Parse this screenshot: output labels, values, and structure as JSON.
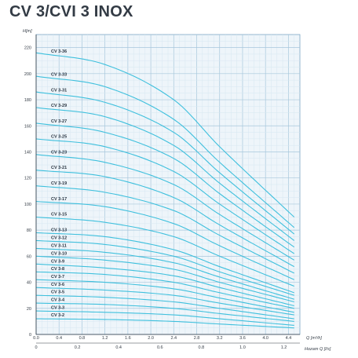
{
  "page": {
    "title": "CV 3/CVI 3 INOX"
  },
  "chart_data": {
    "type": "line",
    "title": "CV 3/CVI 3 INOX",
    "y_unit_label": "H[m]",
    "x_unit_label": "Q [m³/h]",
    "x2_unit_label": "Hozam Q [l/s]",
    "x_ticks": [
      "0.0",
      "0.4",
      "0.8",
      "1.2",
      "1.6",
      "2.0",
      "2.4",
      "2.8",
      "3.2",
      "3.6",
      "4.0",
      "4.4"
    ],
    "x2_ticks": [
      "0",
      "0.2",
      "0.4",
      "0.6",
      "0.8",
      "1.0",
      "1.2"
    ],
    "y_ticks": [
      "0",
      "20",
      "40",
      "60",
      "80",
      "100",
      "120",
      "140",
      "160",
      "180",
      "200",
      "220"
    ],
    "xlim": [
      0,
      4.6
    ],
    "ylim": [
      0,
      230
    ],
    "grid": true,
    "series": [
      {
        "name": "CV 3-2",
        "x": [
          0,
          1.2,
          2.4,
          3.2,
          4.5
        ],
        "y": [
          12,
          11.5,
          10,
          8,
          5
        ]
      },
      {
        "name": "CV 3-3",
        "x": [
          0,
          1.2,
          2.4,
          3.2,
          4.5
        ],
        "y": [
          18,
          17,
          15,
          12,
          7
        ]
      },
      {
        "name": "CV 3-4",
        "x": [
          0,
          1.2,
          2.4,
          3.2,
          4.5
        ],
        "y": [
          24,
          23,
          20,
          16,
          10
        ]
      },
      {
        "name": "CV 3-5",
        "x": [
          0,
          1.2,
          2.4,
          3.2,
          4.5
        ],
        "y": [
          30,
          28.5,
          25,
          20,
          12
        ]
      },
      {
        "name": "CV 3-6",
        "x": [
          0,
          1.2,
          2.4,
          3.2,
          4.5
        ],
        "y": [
          36,
          34,
          30,
          24,
          15
        ]
      },
      {
        "name": "CV 3-7",
        "x": [
          0,
          1.2,
          2.4,
          3.2,
          4.5
        ],
        "y": [
          42,
          40,
          35,
          28,
          17
        ]
      },
      {
        "name": "CV 3-8",
        "x": [
          0,
          1.2,
          2.4,
          3.2,
          4.5
        ],
        "y": [
          48,
          46,
          40,
          32,
          20
        ]
      },
      {
        "name": "CV 3-9",
        "x": [
          0,
          1.2,
          2.4,
          3.2,
          4.5
        ],
        "y": [
          54,
          51,
          45,
          36,
          22
        ]
      },
      {
        "name": "CV 3-10",
        "x": [
          0,
          1.2,
          2.4,
          3.2,
          4.5
        ],
        "y": [
          60,
          57,
          50,
          40,
          25
        ]
      },
      {
        "name": "CV 3-11",
        "x": [
          0,
          1.2,
          2.4,
          3.2,
          4.5
        ],
        "y": [
          66,
          63,
          55,
          44,
          27
        ]
      },
      {
        "name": "CV 3-12",
        "x": [
          0,
          1.2,
          2.4,
          3.2,
          4.5
        ],
        "y": [
          72,
          69,
          60,
          48,
          30
        ]
      },
      {
        "name": "CV 3-13",
        "x": [
          0,
          1.2,
          2.4,
          3.2,
          4.5
        ],
        "y": [
          78,
          75,
          65,
          52,
          32
        ]
      },
      {
        "name": "CV 3-15",
        "x": [
          0,
          1.2,
          2.4,
          3.2,
          4.5
        ],
        "y": [
          90,
          86,
          75,
          60,
          37
        ]
      },
      {
        "name": "CV 3-17",
        "x": [
          0,
          1.2,
          2.4,
          3.2,
          4.5
        ],
        "y": [
          102,
          98,
          85,
          68,
          42
        ]
      },
      {
        "name": "CV 3-19",
        "x": [
          0,
          1.2,
          2.4,
          3.2,
          4.5
        ],
        "y": [
          114,
          109,
          95,
          76,
          47
        ]
      },
      {
        "name": "CV 3-21",
        "x": [
          0,
          1.2,
          2.4,
          3.2,
          4.5
        ],
        "y": [
          126,
          121,
          105,
          84,
          52
        ]
      },
      {
        "name": "CV 3-23",
        "x": [
          0,
          1.2,
          2.4,
          3.2,
          4.5
        ],
        "y": [
          138,
          132,
          115,
          92,
          57
        ]
      },
      {
        "name": "CV 3-25",
        "x": [
          0,
          1.2,
          2.4,
          3.2,
          4.5
        ],
        "y": [
          150,
          144,
          125,
          100,
          62
        ]
      },
      {
        "name": "CV 3-27",
        "x": [
          0,
          1.2,
          2.4,
          3.2,
          4.5
        ],
        "y": [
          162,
          155,
          135,
          108,
          67
        ]
      },
      {
        "name": "CV 3-29",
        "x": [
          0,
          1.2,
          2.4,
          3.2,
          4.5
        ],
        "y": [
          174,
          167,
          145,
          116,
          72
        ]
      },
      {
        "name": "CV 3-31",
        "x": [
          0,
          1.2,
          2.4,
          3.2,
          4.5
        ],
        "y": [
          186,
          178,
          155,
          124,
          77
        ]
      },
      {
        "name": "CV 3-33",
        "x": [
          0,
          1.2,
          2.4,
          3.2,
          4.5
        ],
        "y": [
          198,
          190,
          165,
          132,
          82
        ]
      },
      {
        "name": "CV 3-36",
        "x": [
          0,
          1.2,
          2.4,
          3.2,
          4.5
        ],
        "y": [
          216,
          207,
          180,
          144,
          90
        ]
      }
    ]
  }
}
